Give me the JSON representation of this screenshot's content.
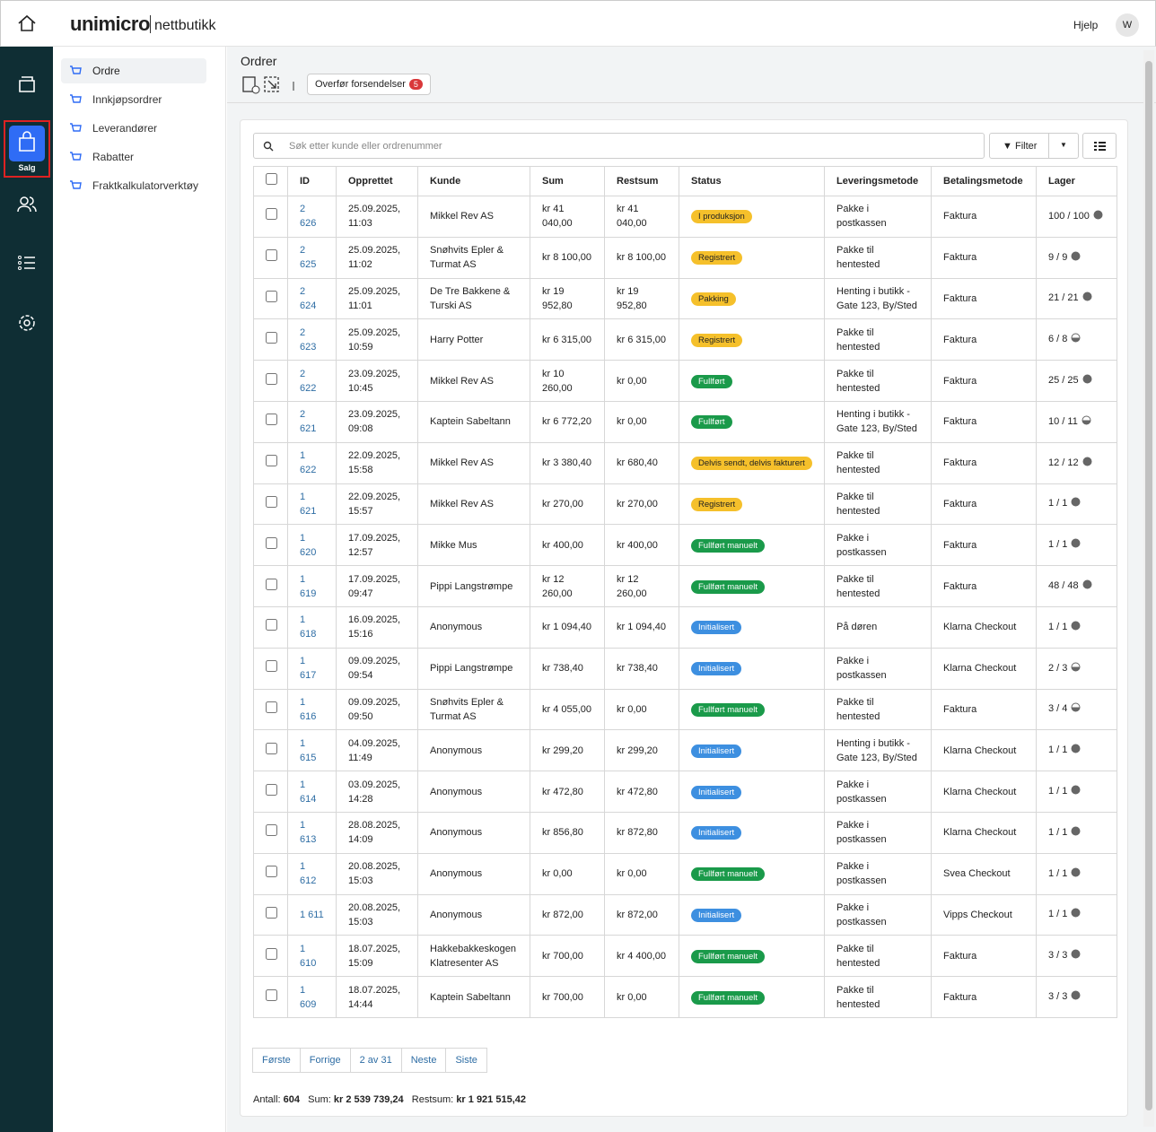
{
  "header": {
    "logo": "unimicro",
    "product": "nettbutikk",
    "help": "Hjelp",
    "avatar": "W"
  },
  "rail": {
    "active_label": "Salg"
  },
  "sidenav": {
    "items": [
      "Ordre",
      "Innkjøpsordrer",
      "Leverandører",
      "Rabatter",
      "Fraktkalkulatorverktøy"
    ]
  },
  "page": {
    "title": "Ordrer",
    "transfer_button": "Overfør forsendelser",
    "transfer_badge": "5"
  },
  "toolbar": {
    "search_placeholder": "Søk etter kunde eller ordrenummer",
    "filter": "Filter"
  },
  "table": {
    "headers": [
      "ID",
      "Opprettet",
      "Kunde",
      "Sum",
      "Restsum",
      "Status",
      "Leveringsmetode",
      "Betalingsmetode",
      "Lager"
    ],
    "rows": [
      {
        "id": "2 626",
        "created": "25.09.2025, 11:03",
        "customer": "Mikkel Rev AS",
        "sum": "kr 41 040,00",
        "restsum": "kr 41 040,00",
        "status": "I produksjon",
        "status_color": "#f5c02b",
        "delivery": "Pakke i postkassen",
        "payment": "Faktura",
        "stock": "100 / 100"
      },
      {
        "id": "2 625",
        "created": "25.09.2025, 11:02",
        "customer": "Snøhvits Epler & Turmat AS",
        "sum": "kr 8 100,00",
        "restsum": "kr 8 100,00",
        "status": "Registrert",
        "status_color": "#f5c02b",
        "delivery": "Pakke til hentested",
        "payment": "Faktura",
        "stock": "9 / 9"
      },
      {
        "id": "2 624",
        "created": "25.09.2025, 11:01",
        "customer": "De Tre Bakkene & Turski AS",
        "sum": "kr 19 952,80",
        "restsum": "kr 19 952,80",
        "status": "Pakking",
        "status_color": "#f5c02b",
        "delivery": "Henting i butikk - Gate 123, By/Sted",
        "payment": "Faktura",
        "stock": "21 / 21"
      },
      {
        "id": "2 623",
        "created": "25.09.2025, 10:59",
        "customer": "Harry Potter",
        "sum": "kr 6 315,00",
        "restsum": "kr 6 315,00",
        "status": "Registrert",
        "status_color": "#f5c02b",
        "delivery": "Pakke til hentested",
        "payment": "Faktura",
        "stock": "6 / 8"
      },
      {
        "id": "2 622",
        "created": "23.09.2025, 10:45",
        "customer": "Mikkel Rev AS",
        "sum": "kr 10 260,00",
        "restsum": "kr 0,00",
        "status": "Fullført",
        "status_color": "#1a9a4a",
        "delivery": "Pakke til hentested",
        "payment": "Faktura",
        "stock": "25 / 25"
      },
      {
        "id": "2 621",
        "created": "23.09.2025, 09:08",
        "customer": "Kaptein Sabeltann",
        "sum": "kr 6 772,20",
        "restsum": "kr 0,00",
        "status": "Fullført",
        "status_color": "#1a9a4a",
        "delivery": "Henting i butikk - Gate 123, By/Sted",
        "payment": "Faktura",
        "stock": "10 / 11"
      },
      {
        "id": "1 622",
        "created": "22.09.2025, 15:58",
        "customer": "Mikkel Rev AS",
        "sum": "kr 3 380,40",
        "restsum": "kr 680,40",
        "status": "Delvis sendt, delvis fakturert",
        "status_color": "#f5c02b",
        "delivery": "Pakke til hentested",
        "payment": "Faktura",
        "stock": "12 / 12"
      },
      {
        "id": "1 621",
        "created": "22.09.2025, 15:57",
        "customer": "Mikkel Rev AS",
        "sum": "kr 270,00",
        "restsum": "kr 270,00",
        "status": "Registrert",
        "status_color": "#f5c02b",
        "delivery": "Pakke til hentested",
        "payment": "Faktura",
        "stock": "1 / 1"
      },
      {
        "id": "1 620",
        "created": "17.09.2025, 12:57",
        "customer": "Mikke Mus",
        "sum": "kr 400,00",
        "restsum": "kr 400,00",
        "status": "Fullført manuelt",
        "status_color": "#1a9a4a",
        "delivery": "Pakke i postkassen",
        "payment": "Faktura",
        "stock": "1 / 1"
      },
      {
        "id": "1 619",
        "created": "17.09.2025, 09:47",
        "customer": "Pippi Langstrømpe",
        "sum": "kr 12 260,00",
        "restsum": "kr 12 260,00",
        "status": "Fullført manuelt",
        "status_color": "#1a9a4a",
        "delivery": "Pakke til hentested",
        "payment": "Faktura",
        "stock": "48 / 48"
      },
      {
        "id": "1 618",
        "created": "16.09.2025, 15:16",
        "customer": "Anonymous",
        "sum": "kr 1 094,40",
        "restsum": "kr 1 094,40",
        "status": "Initialisert",
        "status_color": "#3d8fe0",
        "delivery": "På døren",
        "payment": "Klarna Checkout",
        "stock": "1 / 1"
      },
      {
        "id": "1 617",
        "created": "09.09.2025, 09:54",
        "customer": "Pippi Langstrømpe",
        "sum": "kr 738,40",
        "restsum": "kr 738,40",
        "status": "Initialisert",
        "status_color": "#3d8fe0",
        "delivery": "Pakke i postkassen",
        "payment": "Klarna Checkout",
        "stock": "2 / 3"
      },
      {
        "id": "1 616",
        "created": "09.09.2025, 09:50",
        "customer": "Snøhvits Epler & Turmat AS",
        "sum": "kr 4 055,00",
        "restsum": "kr 0,00",
        "status": "Fullført manuelt",
        "status_color": "#1a9a4a",
        "delivery": "Pakke til hentested",
        "payment": "Faktura",
        "stock": "3 / 4"
      },
      {
        "id": "1 615",
        "created": "04.09.2025, 11:49",
        "customer": "Anonymous",
        "sum": "kr 299,20",
        "restsum": "kr 299,20",
        "status": "Initialisert",
        "status_color": "#3d8fe0",
        "delivery": "Henting i butikk - Gate 123, By/Sted",
        "payment": "Klarna Checkout",
        "stock": "1 / 1"
      },
      {
        "id": "1 614",
        "created": "03.09.2025, 14:28",
        "customer": "Anonymous",
        "sum": "kr 472,80",
        "restsum": "kr 472,80",
        "status": "Initialisert",
        "status_color": "#3d8fe0",
        "delivery": "Pakke i postkassen",
        "payment": "Klarna Checkout",
        "stock": "1 / 1"
      },
      {
        "id": "1 613",
        "created": "28.08.2025, 14:09",
        "customer": "Anonymous",
        "sum": "kr 856,80",
        "restsum": "kr 872,80",
        "status": "Initialisert",
        "status_color": "#3d8fe0",
        "delivery": "Pakke i postkassen",
        "payment": "Klarna Checkout",
        "stock": "1 / 1"
      },
      {
        "id": "1 612",
        "created": "20.08.2025, 15:03",
        "customer": "Anonymous",
        "sum": "kr 0,00",
        "restsum": "kr 0,00",
        "status": "Fullført manuelt",
        "status_color": "#1a9a4a",
        "delivery": "Pakke i postkassen",
        "payment": "Svea Checkout",
        "stock": "1 / 1"
      },
      {
        "id": "1 611",
        "created": "20.08.2025, 15:03",
        "customer": "Anonymous",
        "sum": "kr 872,00",
        "restsum": "kr 872,00",
        "status": "Initialisert",
        "status_color": "#3d8fe0",
        "delivery": "Pakke i postkassen",
        "payment": "Vipps Checkout",
        "stock": "1 / 1"
      },
      {
        "id": "1 610",
        "created": "18.07.2025, 15:09",
        "customer": "Hakkebakkeskogen Klatresenter AS",
        "sum": "kr 700,00",
        "restsum": "kr 4 400,00",
        "status": "Fullført manuelt",
        "status_color": "#1a9a4a",
        "delivery": "Pakke til hentested",
        "payment": "Faktura",
        "stock": "3 / 3"
      },
      {
        "id": "1 609",
        "created": "18.07.2025, 14:44",
        "customer": "Kaptein Sabeltann",
        "sum": "kr 700,00",
        "restsum": "kr 0,00",
        "status": "Fullført manuelt",
        "status_color": "#1a9a4a",
        "delivery": "Pakke til hentested",
        "payment": "Faktura",
        "stock": "3 / 3"
      }
    ]
  },
  "pagination": [
    "Første",
    "Forrige",
    "2 av 31",
    "Neste",
    "Siste"
  ],
  "summary": {
    "count_label": "Antall:",
    "count": "604",
    "sum_label": "Sum:",
    "sum": "kr 2 539 739,24",
    "restsum_label": "Restsum:",
    "restsum": "kr 1 921 515,42"
  }
}
